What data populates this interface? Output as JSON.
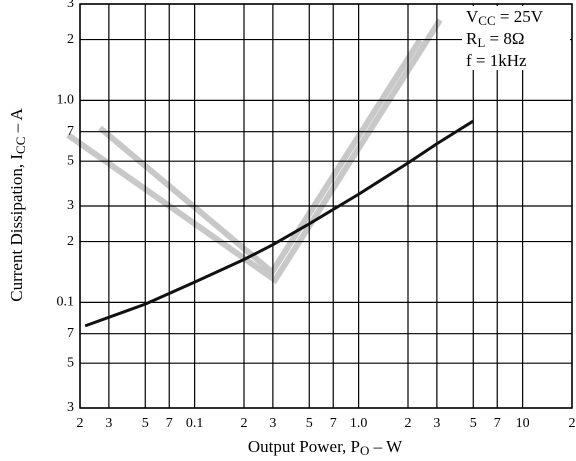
{
  "chart_data": {
    "type": "line",
    "log_x": true,
    "log_y": true,
    "grid": true,
    "x_label": {
      "main": "Output Power, P",
      "sub": "O",
      "rest": " – W"
    },
    "y_label": {
      "main": "Current Dissipation, I",
      "sub": "CC",
      "rest": " – A"
    },
    "annotations": [
      {
        "main": "V",
        "sub": "CC",
        "rest": " = 25V"
      },
      {
        "main": "R",
        "sub": "L",
        "rest": " = 8Ω"
      },
      {
        "main": "f = 1kHz",
        "sub": "",
        "rest": ""
      }
    ],
    "xlim": [
      0.02,
      20
    ],
    "ylim": [
      0.03,
      3
    ],
    "xticks": [
      {
        "value": 0.02,
        "label": "2"
      },
      {
        "value": 0.03,
        "label": "3"
      },
      {
        "value": 0.05,
        "label": "5"
      },
      {
        "value": 0.07,
        "label": "7"
      },
      0.1,
      {
        "value": 0.2,
        "label": "2"
      },
      {
        "value": 0.3,
        "label": "3"
      },
      {
        "value": 0.5,
        "label": "5"
      },
      {
        "value": 0.7,
        "label": "7"
      },
      {
        "value": 1,
        "label": "1.0"
      },
      2,
      3,
      5,
      7,
      10,
      {
        "value": 20,
        "label": "2"
      }
    ],
    "yticks": [
      {
        "value": 0.03,
        "label": "3"
      },
      {
        "value": 0.05,
        "label": "5"
      },
      {
        "value": 0.07,
        "label": "7"
      },
      0.1,
      {
        "value": 0.2,
        "label": "2"
      },
      {
        "value": 0.3,
        "label": "3"
      },
      {
        "value": 0.5,
        "label": "5"
      },
      {
        "value": 0.7,
        "label": "7"
      },
      {
        "value": 1,
        "label": "1.0"
      },
      2,
      3
    ],
    "x": [
      0.0215,
      0.05,
      0.1,
      0.2,
      0.3,
      0.5,
      1,
      2,
      3,
      5
    ],
    "color": "#111111",
    "values": [
      0.0765,
      0.098,
      0.126,
      0.163,
      0.193,
      0.245,
      0.343,
      0.49,
      0.61,
      0.79
    ]
  }
}
